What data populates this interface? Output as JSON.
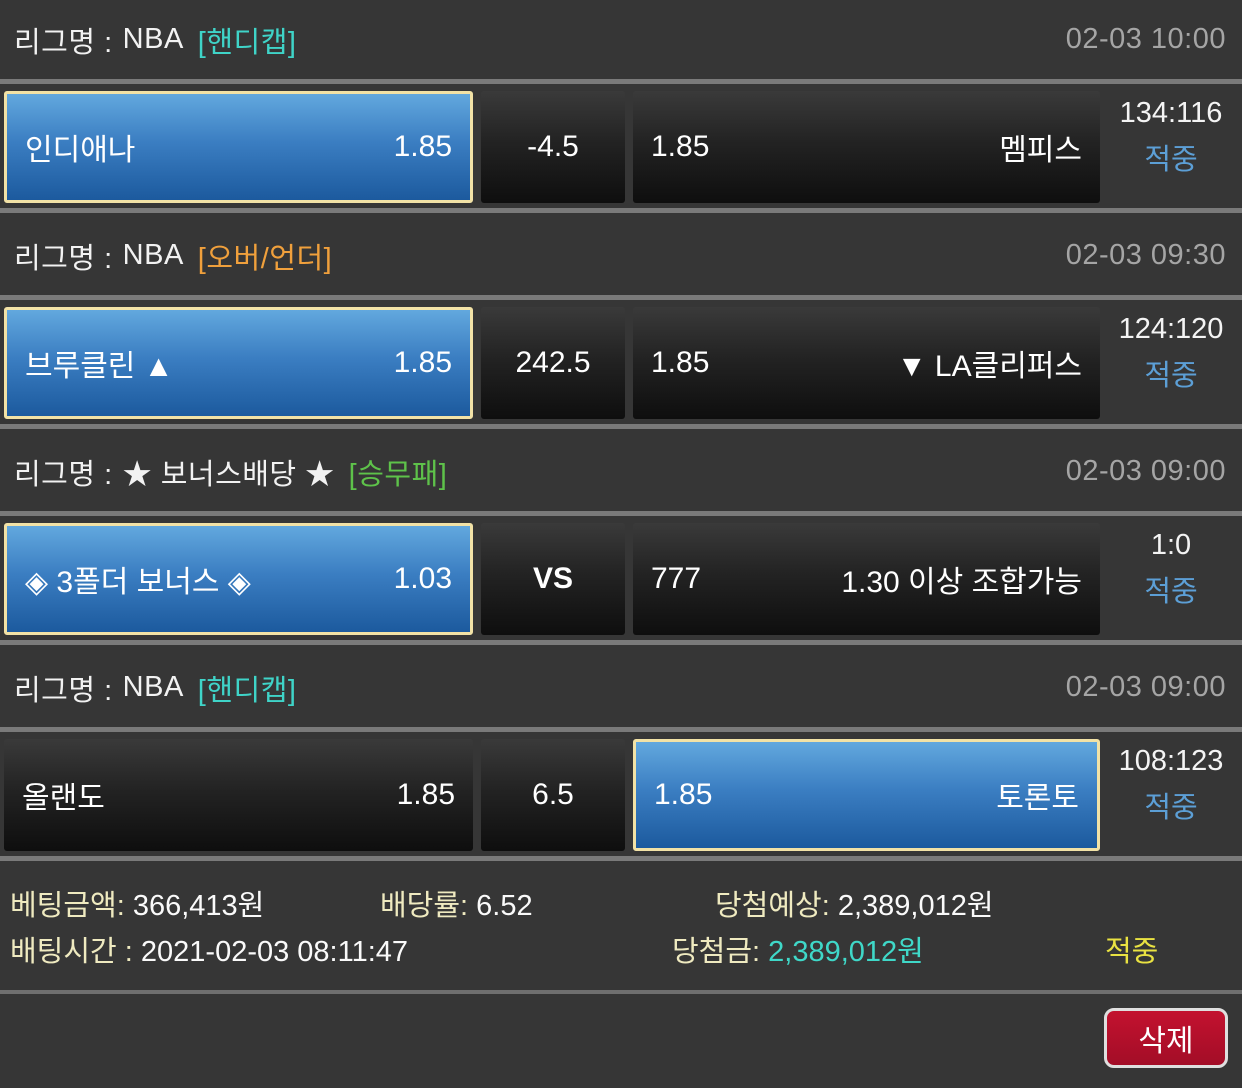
{
  "games": [
    {
      "league_label": "리그명 :",
      "league": "NBA",
      "market": "[핸디캡]",
      "market_color": "#3fd4c8",
      "time": "02-03 10:00",
      "home": {
        "name": "인디애나",
        "odds": "1.85",
        "selected": true
      },
      "line": "-4.5",
      "away": {
        "name": "멤피스",
        "odds": "1.85",
        "selected": false
      },
      "score": "134:116",
      "result": "적중"
    },
    {
      "league_label": "리그명 :",
      "league": "NBA",
      "market": "[오버/언더]",
      "market_color": "#f0a03c",
      "time": "02-03 09:30",
      "home": {
        "name": "브루클린 ▲",
        "odds": "1.85",
        "selected": true
      },
      "line": "242.5",
      "away": {
        "name": "▼ LA클리퍼스",
        "odds": "1.85",
        "selected": false
      },
      "score": "124:120",
      "result": "적중"
    },
    {
      "league_label": "리그명 :",
      "league": "★ 보너스배당 ★",
      "market": "[승무패]",
      "market_color": "#5ec24a",
      "time": "02-03 09:00",
      "home": {
        "name": "◈ 3폴더 보너스 ◈",
        "odds": "1.03",
        "selected": true
      },
      "line": "VS",
      "away": {
        "name": "1.30 이상 조합가능",
        "odds": "777",
        "selected": false
      },
      "score": "1:0",
      "result": "적중"
    },
    {
      "league_label": "리그명 :",
      "league": "NBA",
      "market": "[핸디캡]",
      "market_color": "#3fd4c8",
      "time": "02-03 09:00",
      "home": {
        "name": "올랜도",
        "odds": "1.85",
        "selected": false
      },
      "line": "6.5",
      "away": {
        "name": "토론토",
        "odds": "1.85",
        "selected": true
      },
      "score": "108:123",
      "result": "적중"
    }
  ],
  "summary": {
    "bet_amount_label": "베팅금액:",
    "bet_amount": "366,413원",
    "odds_label": "배당률:",
    "odds": "6.52",
    "expected_label": "당첨예상:",
    "expected": "2,389,012원",
    "bet_time_label": "배팅시간 :",
    "bet_time": "2021-02-03 08:11:47",
    "win_label": "당첨금:",
    "win": "2,389,012원",
    "win_value_color": "#3fd8c8",
    "result": "적중",
    "result_color": "#e9e242"
  },
  "colors": {
    "selected_fill": "#3b7ec2",
    "selected_border": "#f2e2a6",
    "hit_blue": "#5c9fd6",
    "divider": "#7a7a7a"
  },
  "actions": {
    "delete_label": "삭제"
  }
}
